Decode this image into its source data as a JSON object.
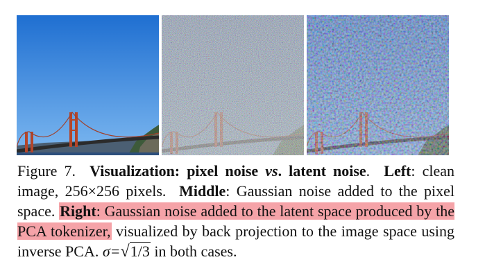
{
  "figure": {
    "panels": [
      {
        "name": "left",
        "noise": "none"
      },
      {
        "name": "middle",
        "noise": "pixel"
      },
      {
        "name": "right",
        "noise": "latent"
      }
    ],
    "colors": {
      "sky_top": "#1f6fd1",
      "sky_bottom": "#6fb1f2",
      "bridge": "#b3452a",
      "cliff": "#3d5a3a",
      "water": "#2d4f7c"
    }
  },
  "caption": {
    "figure_label": "Figure 7.",
    "title_a": "Visualization: pixel noise",
    "title_vs": "vs",
    "title_b": ". latent noise",
    "sep1": ".",
    "left_label": "Left",
    "left_text": ": clean image, 256×256 pixels.",
    "middle_label": "Middle",
    "middle_text": ": Gaussian noise added to the pixel space.",
    "right_label": "Right",
    "right_text": ": Gaussian noise added to the latent space produced by the PCA tokenizer,",
    "rest_text": " visualized by back projection to the image space using inverse PCA.",
    "sigma_text": "σ=",
    "sqrt_symbol": "√",
    "sqrt_value": "1/3",
    "end_text": " in both cases."
  }
}
